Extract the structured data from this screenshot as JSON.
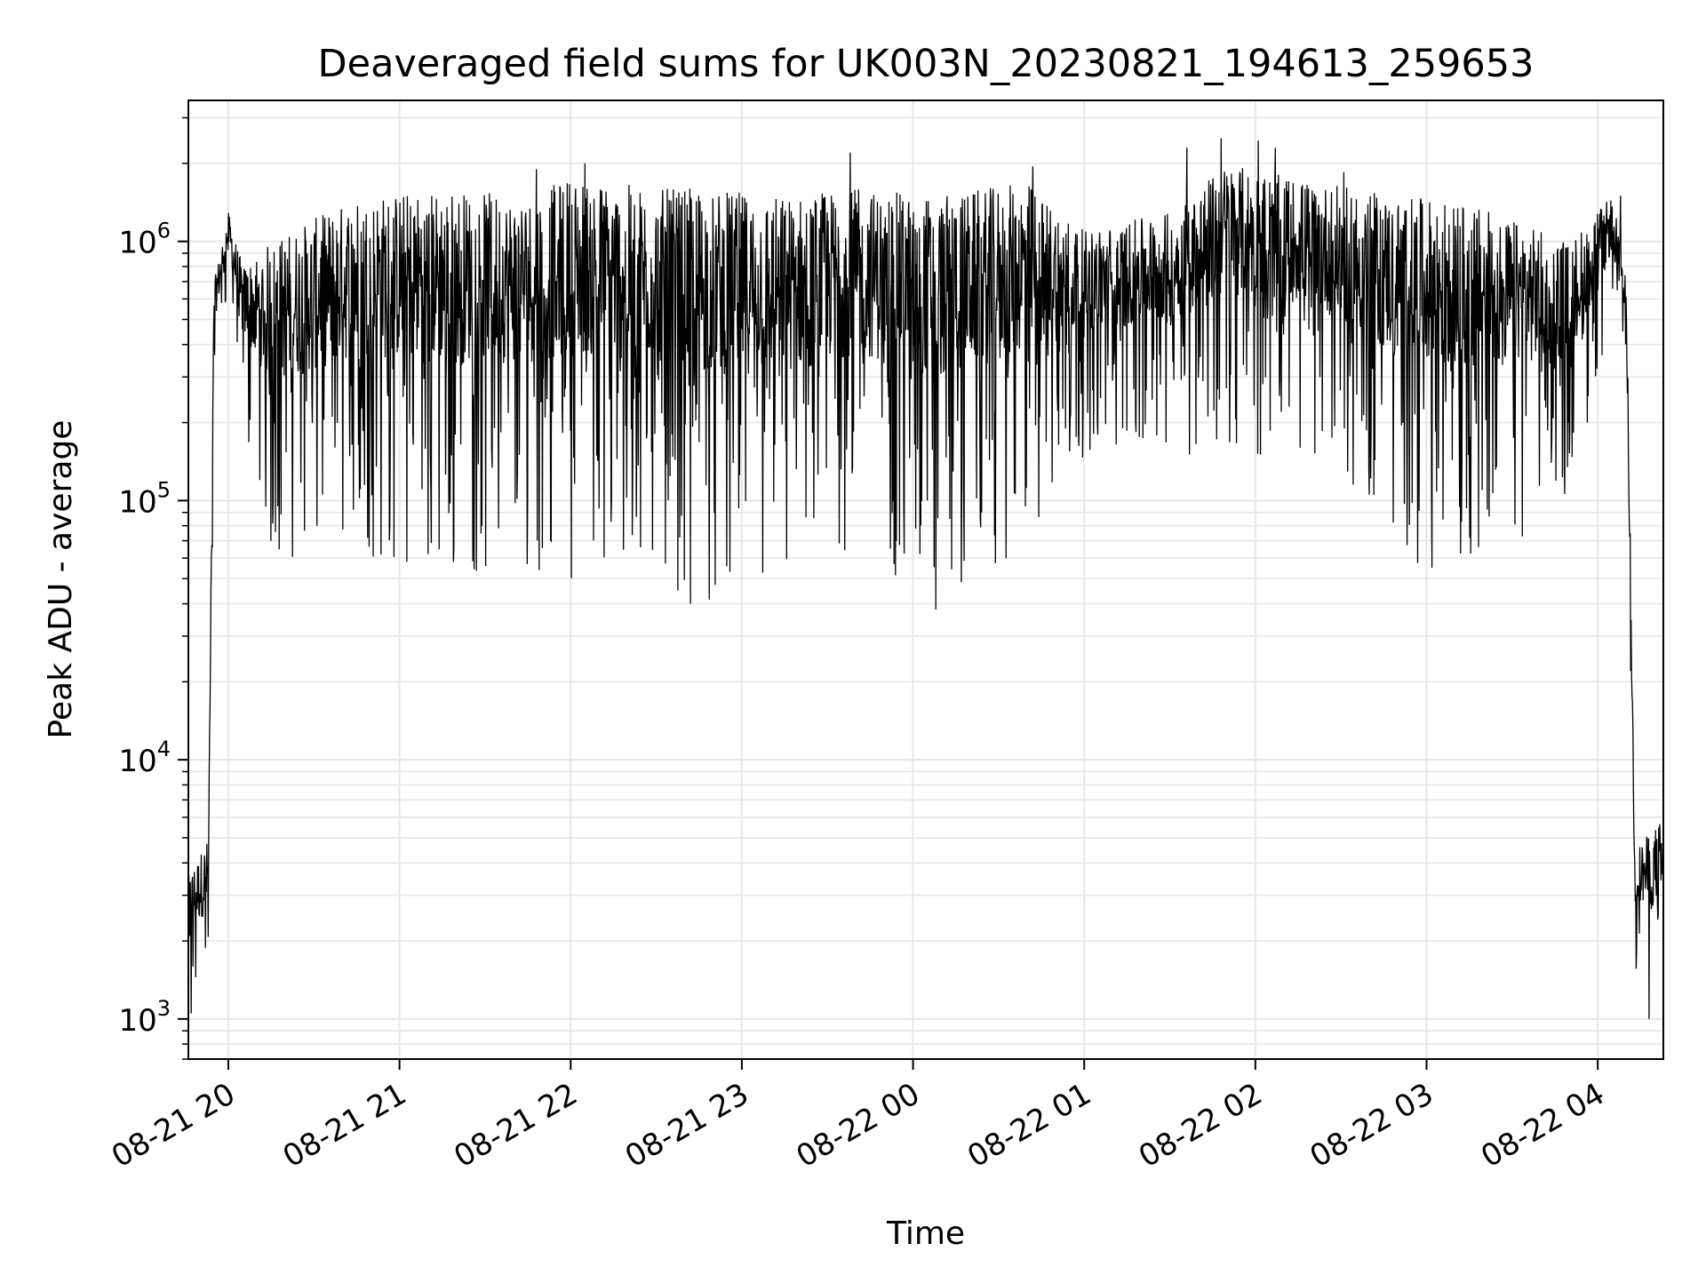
{
  "chart_data": {
    "type": "line",
    "title": "Deaveraged field sums for UK003N_20230821_194613_259653",
    "xlabel": "Time",
    "ylabel": "Peak ADU - average",
    "yscale": "log",
    "ylim": [
      700,
      3500000
    ],
    "xlim": [
      "2023-08-21 19:46",
      "2023-08-22 04:23"
    ],
    "x_ticks": [
      {
        "time": "2023-08-21 20:00",
        "label": "08-21 20"
      },
      {
        "time": "2023-08-21 21:00",
        "label": "08-21 21"
      },
      {
        "time": "2023-08-21 22:00",
        "label": "08-21 22"
      },
      {
        "time": "2023-08-21 23:00",
        "label": "08-21 23"
      },
      {
        "time": "2023-08-22 00:00",
        "label": "08-22 00"
      },
      {
        "time": "2023-08-22 01:00",
        "label": "08-22 01"
      },
      {
        "time": "2023-08-22 02:00",
        "label": "08-22 02"
      },
      {
        "time": "2023-08-22 03:00",
        "label": "08-22 03"
      },
      {
        "time": "2023-08-22 04:00",
        "label": "08-22 04"
      }
    ],
    "y_ticks": [
      {
        "value": 1000,
        "base": "10",
        "exp": "3"
      },
      {
        "value": 10000,
        "base": "10",
        "exp": "4"
      },
      {
        "value": 100000,
        "base": "10",
        "exp": "5"
      },
      {
        "value": 1000000,
        "base": "10",
        "exp": "6"
      }
    ],
    "grid": true,
    "line_color": "#000000",
    "grid_color": "#e6e6e6",
    "envelope": [
      {
        "t": "2023-08-21 19:46",
        "low": 1100,
        "high": 3600
      },
      {
        "t": "2023-08-21 19:53",
        "low": 1200,
        "high": 5000
      },
      {
        "t": "2023-08-21 19:55",
        "low": 300000,
        "high": 700000
      },
      {
        "t": "2023-08-21 20:00",
        "low": 650000,
        "high": 1300000
      },
      {
        "t": "2023-08-21 20:05",
        "low": 200000,
        "high": 800000
      },
      {
        "t": "2023-08-21 20:15",
        "low": 60000,
        "high": 1000000
      },
      {
        "t": "2023-08-21 20:45",
        "low": 60000,
        "high": 1500000
      },
      {
        "t": "2023-08-21 21:15",
        "low": 50000,
        "high": 1600000
      },
      {
        "t": "2023-08-21 21:45",
        "low": 55000,
        "high": 1500000
      },
      {
        "t": "2023-08-21 22:00",
        "low": 50000,
        "high": 1800000
      },
      {
        "t": "2023-08-21 22:30",
        "low": 50000,
        "high": 1600000
      },
      {
        "t": "2023-08-21 22:45",
        "low": 40000,
        "high": 1600000
      },
      {
        "t": "2023-08-21 23:15",
        "low": 45000,
        "high": 1500000
      },
      {
        "t": "2023-08-21 23:40",
        "low": 60000,
        "high": 1600000
      },
      {
        "t": "2023-08-22 00:10",
        "low": 40000,
        "high": 1500000
      },
      {
        "t": "2023-08-22 00:40",
        "low": 60000,
        "high": 1700000
      },
      {
        "t": "2023-08-22 01:00",
        "low": 150000,
        "high": 1100000
      },
      {
        "t": "2023-08-22 01:30",
        "low": 150000,
        "high": 1300000
      },
      {
        "t": "2023-08-22 01:50",
        "low": 150000,
        "high": 2000000
      },
      {
        "t": "2023-08-22 02:20",
        "low": 150000,
        "high": 1700000
      },
      {
        "t": "2023-08-22 02:50",
        "low": 60000,
        "high": 1500000
      },
      {
        "t": "2023-08-22 03:15",
        "low": 50000,
        "high": 1400000
      },
      {
        "t": "2023-08-22 03:50",
        "low": 100000,
        "high": 1000000
      },
      {
        "t": "2023-08-22 04:05",
        "low": 500000,
        "high": 1500000
      },
      {
        "t": "2023-08-22 04:10",
        "low": 300000,
        "high": 800000
      },
      {
        "t": "2023-08-22 04:13",
        "low": 1500,
        "high": 4500
      },
      {
        "t": "2023-08-22 04:23",
        "low": 1000,
        "high": 6000
      }
    ],
    "spikes": [
      {
        "t": "2023-08-21 21:48",
        "value": 1900000
      },
      {
        "t": "2023-08-21 22:05",
        "value": 2000000
      },
      {
        "t": "2023-08-21 23:38",
        "value": 2200000
      },
      {
        "t": "2023-08-22 00:42",
        "value": 1950000
      },
      {
        "t": "2023-08-22 01:36",
        "value": 2300000
      },
      {
        "t": "2023-08-22 01:48",
        "value": 2500000
      },
      {
        "t": "2023-08-22 02:01",
        "value": 2450000
      },
      {
        "t": "2023-08-22 02:07",
        "value": 2300000
      },
      {
        "t": "2023-08-22 02:31",
        "value": 1850000
      },
      {
        "t": "2023-08-22 04:08",
        "value": 1500000
      },
      {
        "t": "2023-08-22 00:08",
        "value": 38000
      },
      {
        "t": "2023-08-21 22:42",
        "value": 40000
      },
      {
        "t": "2023-08-21 19:47",
        "value": 1050
      },
      {
        "t": "2023-08-22 04:18",
        "value": 1000
      },
      {
        "t": "2023-08-22 04:23",
        "value": 6500
      }
    ]
  }
}
